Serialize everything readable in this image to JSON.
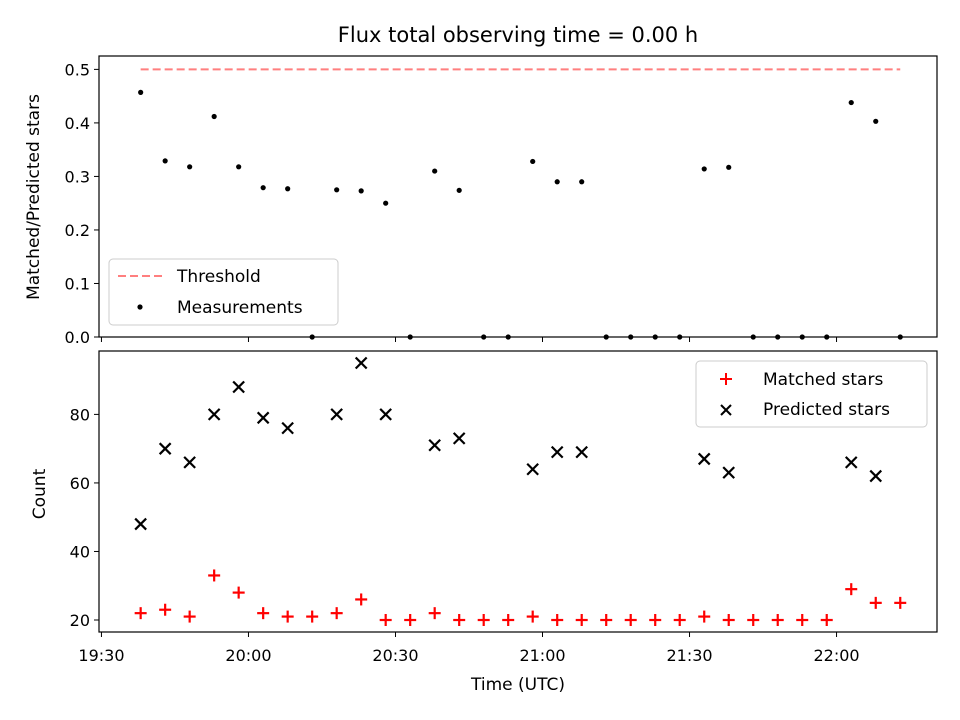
{
  "chart_data": {
    "type": "scatter",
    "title": "Flux total observing time = 0.00 h",
    "xlabel": "Time (UTC)",
    "x_ticks": [
      "19:30",
      "20:00",
      "20:30",
      "21:00",
      "21:30",
      "22:00"
    ],
    "x_tick_minutes": [
      0,
      30,
      60,
      90,
      120,
      150
    ],
    "x_range_minutes": [
      -0.5,
      170.5
    ],
    "times": [
      "19:38",
      "19:43",
      "19:48",
      "19:53",
      "19:58",
      "20:03",
      "20:08",
      "20:13",
      "20:18",
      "20:23",
      "20:28",
      "20:33",
      "20:38",
      "20:43",
      "20:48",
      "20:53",
      "20:58",
      "21:03",
      "21:08",
      "21:13",
      "21:18",
      "21:23",
      "21:28",
      "21:33",
      "21:38",
      "21:43",
      "21:48",
      "21:53",
      "21:58",
      "22:03",
      "22:08",
      "22:13"
    ],
    "top": {
      "ylabel": "Matched/Predicted stars",
      "ylim": [
        0,
        0.525
      ],
      "yticks": [
        "0.0",
        "0.1",
        "0.2",
        "0.3",
        "0.4",
        "0.5"
      ],
      "threshold": {
        "name": "Threshold",
        "value": 0.5,
        "color": "#ff7f7f",
        "x_start_minutes": 8,
        "x_end_minutes": 163
      },
      "measurements": {
        "name": "Measurements",
        "color": "#000000",
        "values": [
          0.457,
          0.329,
          0.318,
          0.412,
          0.318,
          0.279,
          0.277,
          0.0,
          0.275,
          0.273,
          0.25,
          0.0,
          0.31,
          0.274,
          0.0,
          0.0,
          0.328,
          0.29,
          0.29,
          0.0,
          0.0,
          0.0,
          0.0,
          0.314,
          0.317,
          0.0,
          0.0,
          0.0,
          0.0,
          0.438,
          0.403,
          0.0
        ]
      },
      "legend_position": "lower-left"
    },
    "bottom": {
      "ylabel": "Count",
      "ylim": [
        16.5,
        98.5
      ],
      "yticks": [
        "20",
        "40",
        "60",
        "80"
      ],
      "series": [
        {
          "name": "Matched stars",
          "marker": "plus",
          "color": "#ff0000",
          "values": [
            22,
            23,
            21,
            33,
            28,
            22,
            21,
            21,
            22,
            26,
            20,
            20,
            22,
            20,
            20,
            20,
            21,
            20,
            20,
            20,
            20,
            20,
            20,
            21,
            20,
            20,
            20,
            20,
            20,
            29,
            25,
            25
          ]
        },
        {
          "name": "Predicted stars",
          "marker": "x",
          "color": "#000000",
          "values": [
            48,
            70,
            66,
            80,
            88,
            79,
            76,
            null,
            80,
            95,
            80,
            null,
            71,
            73,
            null,
            null,
            64,
            69,
            69,
            null,
            null,
            null,
            null,
            67,
            63,
            null,
            null,
            null,
            null,
            66,
            62,
            null
          ]
        }
      ],
      "legend_position": "upper-right"
    }
  }
}
